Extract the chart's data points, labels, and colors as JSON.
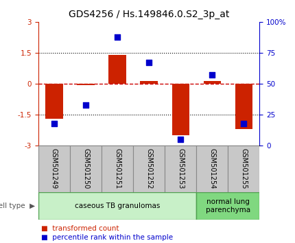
{
  "title": "GDS4256 / Hs.149846.0.S2_3p_at",
  "samples": [
    "GSM501249",
    "GSM501250",
    "GSM501251",
    "GSM501252",
    "GSM501253",
    "GSM501254",
    "GSM501255"
  ],
  "red_bars": [
    -1.7,
    -0.05,
    1.4,
    0.15,
    -2.5,
    0.15,
    -2.2
  ],
  "blue_dots": [
    18,
    33,
    88,
    67,
    5,
    57,
    18
  ],
  "ylim": [
    -3,
    3
  ],
  "y2lim": [
    0,
    100
  ],
  "yticks_left": [
    -3,
    -1.5,
    0,
    1.5,
    3
  ],
  "yticks_right": [
    0,
    25,
    50,
    75,
    100
  ],
  "ytick_labels_left": [
    "-3",
    "-1.5",
    "0",
    "1.5",
    "3"
  ],
  "ytick_labels_right": [
    "0",
    "25",
    "50",
    "75",
    "100%"
  ],
  "hlines_dotted": [
    -1.5,
    1.5
  ],
  "hline_dashed": 0,
  "cell_types": [
    {
      "label": "caseous TB granulomas",
      "start": 0,
      "end": 4,
      "color": "#c8f0c8"
    },
    {
      "label": "normal lung\nparenchyma",
      "start": 5,
      "end": 6,
      "color": "#80d880"
    }
  ],
  "red_color": "#cc2200",
  "blue_color": "#0000cc",
  "bar_width": 0.55,
  "dot_size": 40,
  "zero_line_color": "#cc0000",
  "dotted_color": "#000000",
  "bg_color": "#ffffff",
  "legend_red_label": "transformed count",
  "legend_blue_label": "percentile rank within the sample",
  "tick_color_left": "#cc2200",
  "tick_color_right": "#0000cc",
  "title_fontsize": 10,
  "tick_fontsize": 7.5,
  "sample_label_fontsize": 7,
  "cell_label_fontsize": 7.5,
  "legend_fontsize": 7.5,
  "sample_box_color": "#c8c8c8",
  "sample_box_edge": "#888888",
  "cell_type_text_color": "#555555",
  "arrow_color": "#888888"
}
